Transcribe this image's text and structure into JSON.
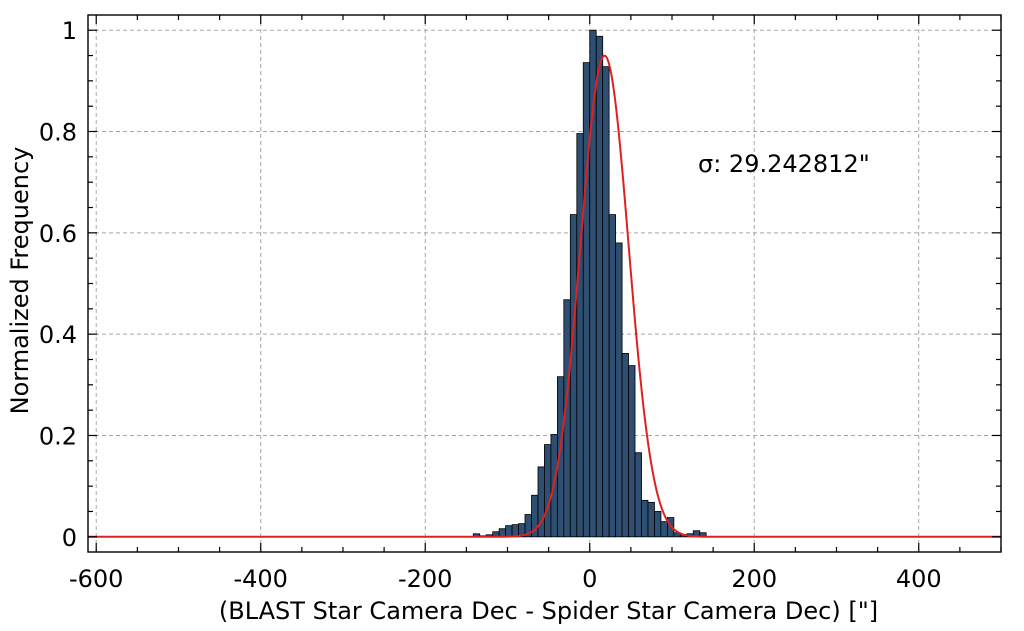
{
  "chart_data": {
    "type": "bar",
    "xlabel": "(BLAST Star Camera Dec - Spider Star Camera Dec) [\"]",
    "ylabel": "Normalized Frequency",
    "xlim": [
      -610,
      500
    ],
    "ylim": [
      -0.03,
      1.03
    ],
    "x_ticks": [
      -600,
      -400,
      -200,
      0,
      200,
      400
    ],
    "x_tick_labels": [
      "-600",
      "-400",
      "-200",
      "0",
      "200",
      "400"
    ],
    "y_ticks": [
      0,
      0.2,
      0.4,
      0.6,
      0.8,
      1
    ],
    "y_tick_labels": [
      "0",
      "0.2",
      "0.4",
      "0.6",
      "0.8",
      "1"
    ],
    "grid": true,
    "annotation": "σ: 29.242812\"",
    "histogram": {
      "bin_width": 7.86,
      "bin_starts": [
        -141.6,
        -133.7,
        -125.9,
        -118.0,
        -110.1,
        -102.3,
        -94.4,
        -86.5,
        -78.7,
        -70.8,
        -62.9,
        -55.1,
        -47.2,
        -39.3,
        -31.5,
        -23.6,
        -15.7,
        -7.9,
        0.0,
        7.9,
        15.7,
        23.6,
        31.5,
        39.3,
        47.2,
        55.1,
        62.9,
        70.8,
        78.7,
        86.5,
        94.4,
        102.3,
        110.1,
        118.0,
        125.9,
        133.7,
        141.6
      ],
      "values": [
        0.006,
        0.002,
        0.004,
        0.01,
        0.016,
        0.022,
        0.024,
        0.026,
        0.044,
        0.082,
        0.138,
        0.182,
        0.202,
        0.316,
        0.468,
        0.636,
        0.796,
        0.936,
        1.0,
        0.988,
        0.928,
        0.636,
        0.58,
        0.362,
        0.338,
        0.166,
        0.072,
        0.068,
        0.05,
        0.03,
        0.038,
        0.008,
        0.004,
        0.006,
        0.012,
        0.008,
        0.0
      ]
    },
    "series": [
      {
        "type": "line",
        "color": "#e02020",
        "gaussian_fit": {
          "amplitude": 0.95,
          "mean": 18,
          "sigma": 29.242812
        },
        "x_range": [
          -610,
          500
        ]
      }
    ]
  }
}
